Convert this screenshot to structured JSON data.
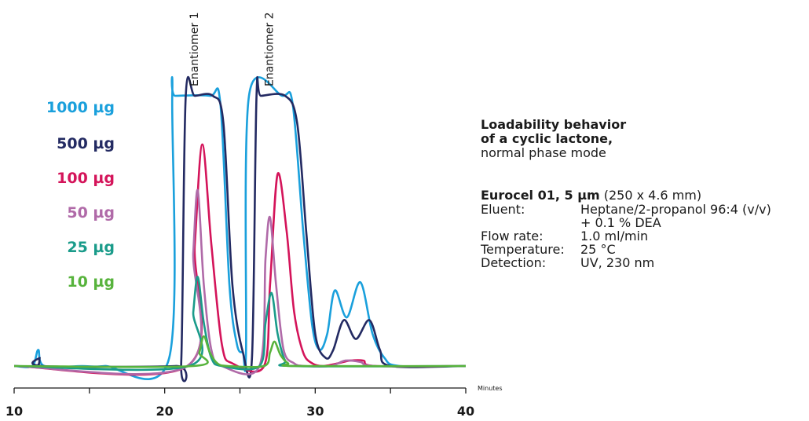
{
  "chart_data": {
    "type": "line",
    "xlabel": "Minutes",
    "xlim": [
      10,
      40
    ],
    "ylim": [
      0,
      1
    ],
    "x_ticks": [
      10,
      20,
      30,
      40
    ],
    "peak_annotations": [
      {
        "text": "Enantiomer 1",
        "x": 22.3
      },
      {
        "text": "Enantiomer 2",
        "x": 27.3
      }
    ],
    "series": [
      {
        "name": "1000 µg",
        "color": "#1aa0dc",
        "x": [
          10.0,
          11.2,
          11.6,
          12.0,
          14.5,
          16.0,
          20.3,
          20.5,
          20.7,
          23.0,
          23.7,
          24.3,
          24.8,
          25.2,
          25.4,
          25.6,
          27.8,
          28.5,
          29.2,
          29.8,
          30.3,
          30.8,
          31.3,
          32.1,
          33.0,
          33.8,
          34.6,
          35.6,
          40.0
        ],
        "y": [
          0.0,
          0.0,
          0.06,
          0.0,
          0.0,
          0.0,
          0.03,
          1.0,
          1.0,
          1.0,
          0.97,
          0.3,
          0.08,
          0.05,
          0.05,
          1.0,
          1.0,
          0.97,
          0.5,
          0.15,
          0.06,
          0.12,
          0.28,
          0.18,
          0.31,
          0.12,
          0.03,
          0.0,
          0.0
        ]
      },
      {
        "name": "500 µg",
        "color": "#232a62",
        "x": [
          10.0,
          11.5,
          11.7,
          11.9,
          20.7,
          21.1,
          21.4,
          22.0,
          23.2,
          23.9,
          24.5,
          25.2,
          25.8,
          26.1,
          26.4,
          28.0,
          28.8,
          29.4,
          30.0,
          30.7,
          31.2,
          31.9,
          32.7,
          33.6,
          34.3,
          35.0,
          40.0
        ],
        "y": [
          0.0,
          0.0,
          0.03,
          0.0,
          0.0,
          0.02,
          1.0,
          1.0,
          1.0,
          0.9,
          0.3,
          0.05,
          0.03,
          1.0,
          1.0,
          1.0,
          0.9,
          0.5,
          0.12,
          0.03,
          0.06,
          0.17,
          0.1,
          0.17,
          0.06,
          0.0,
          0.0
        ]
      },
      {
        "name": "100 µg",
        "color": "#d4145a",
        "x": [
          10.0,
          21.5,
          22.0,
          22.5,
          23.1,
          23.8,
          24.5,
          26.6,
          27.0,
          27.5,
          28.1,
          28.6,
          29.2,
          29.8,
          30.5,
          31.5,
          32.3,
          33.2,
          34.0,
          40.0
        ],
        "y": [
          0.0,
          0.0,
          0.45,
          0.82,
          0.45,
          0.08,
          0.01,
          0.0,
          0.3,
          0.71,
          0.5,
          0.2,
          0.05,
          0.01,
          0.0,
          0.01,
          0.02,
          0.02,
          0.0,
          0.0
        ]
      },
      {
        "name": "50 µg",
        "color": "#b06aa8",
        "x": [
          10.0,
          21.5,
          21.9,
          22.2,
          22.6,
          23.1,
          23.8,
          26.3,
          26.7,
          27.0,
          27.4,
          27.9,
          28.6,
          29.3,
          31.0,
          32.0,
          33.0,
          34.0,
          40.0
        ],
        "y": [
          0.0,
          0.0,
          0.42,
          0.65,
          0.3,
          0.06,
          0.0,
          0.0,
          0.4,
          0.55,
          0.3,
          0.06,
          0.01,
          0.0,
          0.0,
          0.02,
          0.015,
          0.0,
          0.0
        ]
      },
      {
        "name": "25 µg",
        "color": "#1a9b8a",
        "x": [
          10.0,
          21.6,
          21.9,
          22.2,
          22.6,
          23.1,
          23.8,
          26.3,
          26.7,
          27.1,
          27.5,
          28.0,
          28.6,
          40.0
        ],
        "y": [
          0.0,
          0.0,
          0.2,
          0.33,
          0.16,
          0.03,
          0.0,
          0.0,
          0.16,
          0.27,
          0.12,
          0.02,
          0.0,
          0.0
        ]
      },
      {
        "name": "10 µg",
        "color": "#57b33c",
        "x": [
          10.0,
          21.9,
          22.3,
          22.6,
          23.0,
          23.5,
          24.2,
          26.6,
          27.0,
          27.3,
          27.7,
          28.2,
          28.8,
          40.0
        ],
        "y": [
          0.0,
          0.0,
          0.05,
          0.11,
          0.05,
          0.01,
          0.0,
          0.0,
          0.05,
          0.09,
          0.04,
          0.01,
          0.0,
          0.0
        ]
      }
    ]
  },
  "legend": [
    {
      "label": "1000 µg",
      "color": "#1aa0dc"
    },
    {
      "label": "500 µg",
      "color": "#232a62"
    },
    {
      "label": "100 µg",
      "color": "#d4145a"
    },
    {
      "label": "50 µg",
      "color": "#b06aa8"
    },
    {
      "label": "25 µg",
      "color": "#1a9b8a"
    },
    {
      "label": "10 µg",
      "color": "#57b33c"
    }
  ],
  "info": {
    "title_line1": "Loadability behavior",
    "title_line2": "of a cyclic lactone,",
    "subtitle": "normal phase mode",
    "column_bold": "Eurocel 01, 5 µm",
    "column_rest": " (250 x 4.6 mm)",
    "conditions": [
      {
        "label": "Eluent:",
        "value": "Heptane/2-propanol 96:4 (v/v)"
      },
      {
        "label": "",
        "value": "+ 0.1 % DEA"
      },
      {
        "label": "Flow rate:",
        "value": "1.0 ml/min"
      },
      {
        "label": "Temperature:",
        "value": "25 °C"
      },
      {
        "label": "Detection:",
        "value": "UV, 230 nm"
      }
    ]
  }
}
